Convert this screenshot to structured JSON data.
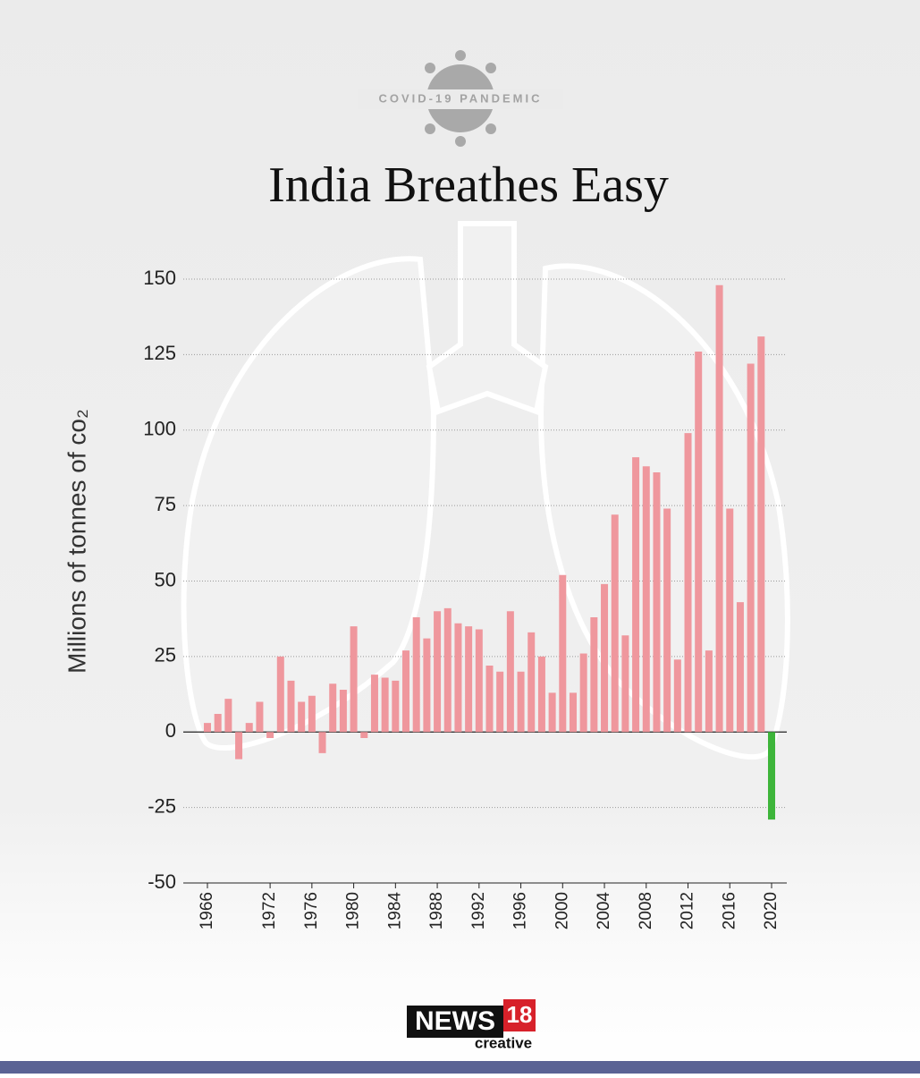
{
  "chart_data": {
    "type": "bar",
    "kicker": "COVID-19 PANDEMIC",
    "title": "India Breathes Easy",
    "y_label": "Millions of tonnes of co₂",
    "categories": [
      "1966",
      null,
      null,
      null,
      null,
      null,
      "1972",
      null,
      null,
      null,
      "1976",
      null,
      null,
      null,
      "1980",
      null,
      null,
      null,
      "1984",
      null,
      null,
      null,
      "1988",
      null,
      null,
      null,
      "1992",
      null,
      null,
      null,
      "1996",
      null,
      null,
      null,
      "2000",
      null,
      null,
      null,
      "2004",
      null,
      null,
      null,
      "2008",
      null,
      null,
      null,
      "2012",
      null,
      null,
      null,
      "2016",
      null,
      null,
      null,
      "2020"
    ],
    "values": [
      3,
      6,
      11,
      -9,
      3,
      10,
      -2,
      25,
      17,
      10,
      12,
      -7,
      16,
      14,
      35,
      -2,
      19,
      18,
      17,
      27,
      38,
      31,
      40,
      41,
      36,
      35,
      34,
      22,
      20,
      40,
      20,
      33,
      25,
      13,
      52,
      13,
      26,
      38,
      49,
      72,
      32,
      91,
      88,
      86,
      74,
      24,
      99,
      126,
      27,
      148,
      74,
      43,
      122,
      131,
      -29
    ],
    "colors": [
      "#ef979d",
      "#ef979d",
      "#ef979d",
      "#ef979d",
      "#ef979d",
      "#ef979d",
      "#ef979d",
      "#ef979d",
      "#ef979d",
      "#ef979d",
      "#ef979d",
      "#ef979d",
      "#ef979d",
      "#ef979d",
      "#ef979d",
      "#ef979d",
      "#ef979d",
      "#ef979d",
      "#ef979d",
      "#ef979d",
      "#ef979d",
      "#ef979d",
      "#ef979d",
      "#ef979d",
      "#ef979d",
      "#ef979d",
      "#ef979d",
      "#ef979d",
      "#ef979d",
      "#ef979d",
      "#ef979d",
      "#ef979d",
      "#ef979d",
      "#ef979d",
      "#ef979d",
      "#ef979d",
      "#ef979d",
      "#ef979d",
      "#ef979d",
      "#ef979d",
      "#ef979d",
      "#ef979d",
      "#ef979d",
      "#ef979d",
      "#ef979d",
      "#ef979d",
      "#ef979d",
      "#ef979d",
      "#ef979d",
      "#ef979d",
      "#ef979d",
      "#ef979d",
      "#ef979d",
      "#ef979d",
      "#3db53a"
    ],
    "ylim": [
      -50,
      150
    ],
    "yticks": [
      -50,
      -25,
      0,
      25,
      50,
      75,
      100,
      125,
      150
    ],
    "grid": true,
    "brand": {
      "name": "NEWS",
      "number": "18",
      "sub": "creative"
    }
  }
}
